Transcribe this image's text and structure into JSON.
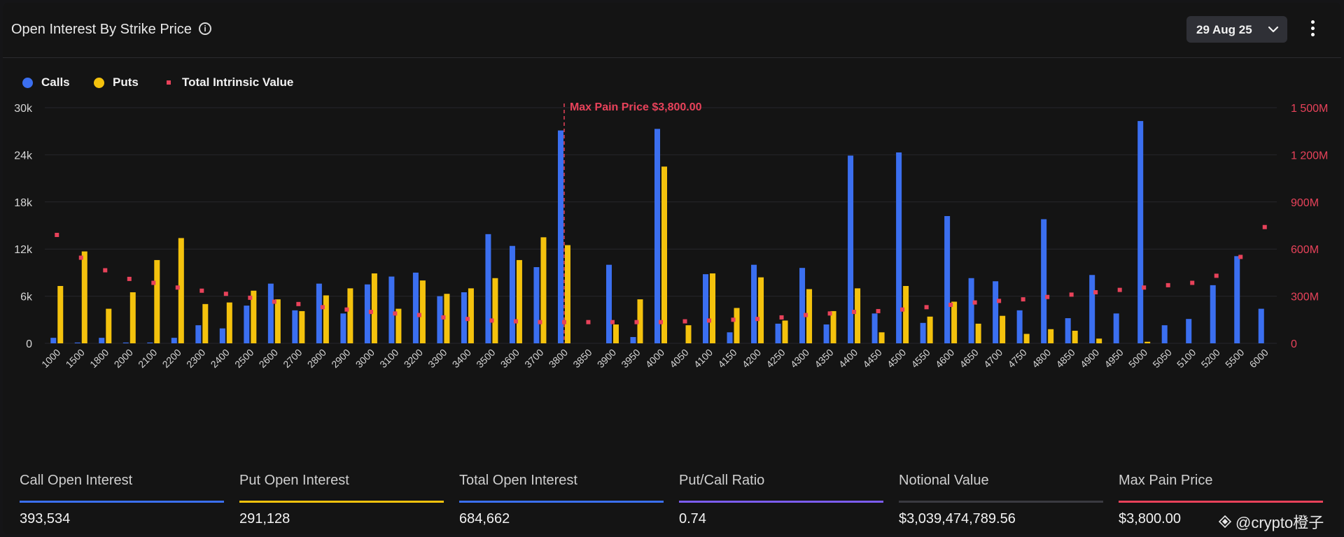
{
  "header": {
    "title": "Open Interest By Strike Price",
    "date": "29 Aug 25"
  },
  "legend": {
    "calls": "Calls",
    "puts": "Puts",
    "intrinsic": "Total Intrinsic Value"
  },
  "colors": {
    "calls": "#3b6ff0",
    "puts": "#f4c20d",
    "intrinsic": "#e8425a",
    "put_call_ratio": "#7b5cf0",
    "notional": "#3a3a40"
  },
  "chart_data": {
    "type": "bar",
    "categories": [
      "1000",
      "1500",
      "1800",
      "2000",
      "2100",
      "2200",
      "2300",
      "2400",
      "2500",
      "2600",
      "2700",
      "2800",
      "2900",
      "3000",
      "3100",
      "3200",
      "3300",
      "3400",
      "3500",
      "3600",
      "3700",
      "3800",
      "3850",
      "3900",
      "3950",
      "4000",
      "4050",
      "4100",
      "4150",
      "4200",
      "4250",
      "4300",
      "4350",
      "4400",
      "4450",
      "4500",
      "4550",
      "4600",
      "4650",
      "4700",
      "4750",
      "4800",
      "4850",
      "4900",
      "4950",
      "5000",
      "5050",
      "5100",
      "5200",
      "5500",
      "6000"
    ],
    "series": [
      {
        "name": "Calls",
        "axis": "left",
        "values": [
          700,
          100,
          700,
          100,
          100,
          700,
          2300,
          1900,
          4800,
          7600,
          4200,
          7600,
          3800,
          7500,
          8500,
          9000,
          6000,
          6500,
          13900,
          12400,
          9700,
          27100,
          0,
          10000,
          800,
          27300,
          0,
          8800,
          1400,
          10000,
          2500,
          9600,
          2400,
          23900,
          3800,
          24300,
          2600,
          16200,
          8300,
          7900,
          4200,
          15800,
          3200,
          8700,
          3800,
          28300,
          2300,
          3100,
          7400,
          11100,
          4400
        ]
      },
      {
        "name": "Puts",
        "axis": "left",
        "values": [
          7300,
          11700,
          4400,
          6500,
          10600,
          13400,
          5000,
          5200,
          6700,
          5600,
          4100,
          6100,
          7000,
          8900,
          4400,
          8000,
          6300,
          7000,
          8300,
          10600,
          13500,
          12500,
          0,
          2400,
          5600,
          22500,
          2300,
          8900,
          4500,
          8400,
          2900,
          6900,
          4100,
          7000,
          1400,
          7300,
          3400,
          5300,
          2500,
          3500,
          1200,
          1800,
          1600,
          600,
          0,
          200,
          0,
          0,
          0,
          0,
          0
        ]
      },
      {
        "name": "Total Intrinsic Value",
        "axis": "right",
        "values": [
          690,
          545,
          465,
          410,
          385,
          355,
          335,
          315,
          290,
          265,
          250,
          230,
          215,
          200,
          190,
          180,
          165,
          155,
          145,
          140,
          135,
          135,
          135,
          135,
          135,
          135,
          140,
          145,
          150,
          155,
          165,
          180,
          190,
          200,
          205,
          215,
          230,
          245,
          260,
          270,
          280,
          295,
          310,
          325,
          340,
          355,
          370,
          385,
          430,
          550,
          740
        ]
      }
    ],
    "y_left": {
      "min": 0,
      "max": 30000,
      "ticks": [
        "0",
        "6k",
        "12k",
        "18k",
        "24k",
        "30k"
      ]
    },
    "y_right": {
      "min": 0,
      "max": 1500,
      "unit": "M",
      "ticks": [
        "0",
        "300M",
        "600M",
        "900M",
        "1 200M",
        "1 500M"
      ]
    },
    "grid": true,
    "legend_position": "top-left",
    "annotation": {
      "strike": "3800",
      "label": "Max Pain Price $3,800.00"
    }
  },
  "stats": [
    {
      "label": "Call Open Interest",
      "value": "393,534",
      "color": "#3b6ff0"
    },
    {
      "label": "Put Open Interest",
      "value": "291,128",
      "color": "#f4c20d"
    },
    {
      "label": "Total Open Interest",
      "value": "684,662",
      "color": "#3b6ff0"
    },
    {
      "label": "Put/Call Ratio",
      "value": "0.74",
      "color": "#7b5cf0"
    },
    {
      "label": "Notional Value",
      "value": "$3,039,474,789.56",
      "color": "#3a3a40"
    },
    {
      "label": "Max Pain Price",
      "value": "$3,800.00",
      "color": "#e8425a"
    }
  ],
  "watermark": "@crypto橙子"
}
